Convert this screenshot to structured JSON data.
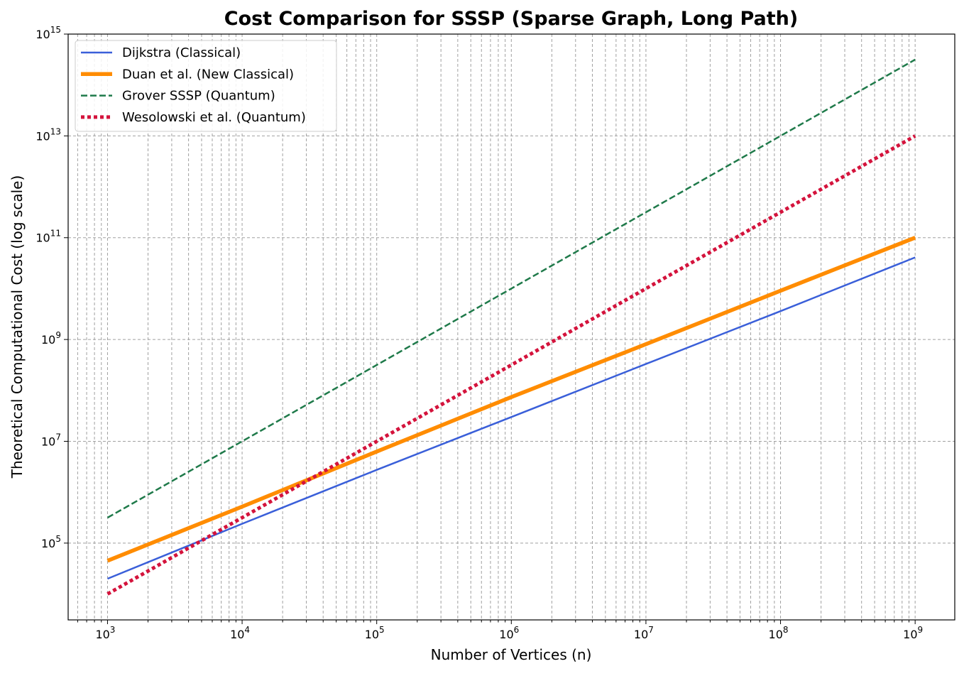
{
  "chart_data": {
    "type": "line",
    "title": "Cost Comparison for SSSP (Sparse Graph, Long Path)",
    "xlabel": "Number of Vertices (n)",
    "ylabel": "Theoretical Computational Cost (log scale)",
    "xscale": "log",
    "yscale": "log",
    "xlim": [
      510,
      1970000000
    ],
    "ylim": [
      3100,
      1000000000000000.0
    ],
    "grid": true,
    "legend_placement": "top-left",
    "x_ticks": [
      {
        "base": "10",
        "exp": "3",
        "value": 1000.0
      },
      {
        "base": "10",
        "exp": "4",
        "value": 10000.0
      },
      {
        "base": "10",
        "exp": "5",
        "value": 100000.0
      },
      {
        "base": "10",
        "exp": "6",
        "value": 1000000.0
      },
      {
        "base": "10",
        "exp": "7",
        "value": 10000000.0
      },
      {
        "base": "10",
        "exp": "8",
        "value": 100000000.0
      },
      {
        "base": "10",
        "exp": "9",
        "value": 1000000000.0
      }
    ],
    "y_ticks": [
      {
        "base": "10",
        "exp": "5",
        "value": 100000.0
      },
      {
        "base": "10",
        "exp": "7",
        "value": 10000000.0
      },
      {
        "base": "10",
        "exp": "9",
        "value": 1000000000.0
      },
      {
        "base": "10",
        "exp": "11",
        "value": 100000000000.0
      },
      {
        "base": "10",
        "exp": "13",
        "value": 10000000000000.0
      },
      {
        "base": "10",
        "exp": "15",
        "value": 1000000000000000.0
      }
    ],
    "x": [
      1000.0,
      10000.0,
      100000.0,
      1000000.0,
      10000000.0,
      100000000.0,
      1000000000.0
    ],
    "series": [
      {
        "name": "Dijkstra (Classical)",
        "color": "#3a5fd9",
        "style": "solid",
        "width": 2.5,
        "values": [
          20000.0,
          240000.0,
          2750000.0,
          30000000.0,
          330000000.0,
          3600000000.0,
          41000000000.0
        ]
      },
      {
        "name": "Duan et al. (New Classical)",
        "color": "#ff8c00",
        "style": "solid",
        "width": 5.5,
        "values": [
          45000.0,
          520000.0,
          6300000.0,
          74000000.0,
          810000000.0,
          9100000000.0,
          100000000000.0
        ]
      },
      {
        "name": "Grover SSSP (Quantum)",
        "color": "#1f7a4a",
        "style": "dashed",
        "width": 2.5,
        "values": [
          316000.0,
          10000000.0,
          316000000.0,
          10000000000.0,
          316000000000.0,
          10000000000000.0,
          316000000000000.0
        ]
      },
      {
        "name": "Wesolowski et al. (Quantum)",
        "color": "#d4133c",
        "style": "dotted",
        "width": 5,
        "values": [
          10000.0,
          316000.0,
          10000000.0,
          316000000.0,
          10000000000.0,
          316000000000.0,
          10000000000000.0
        ]
      }
    ]
  }
}
